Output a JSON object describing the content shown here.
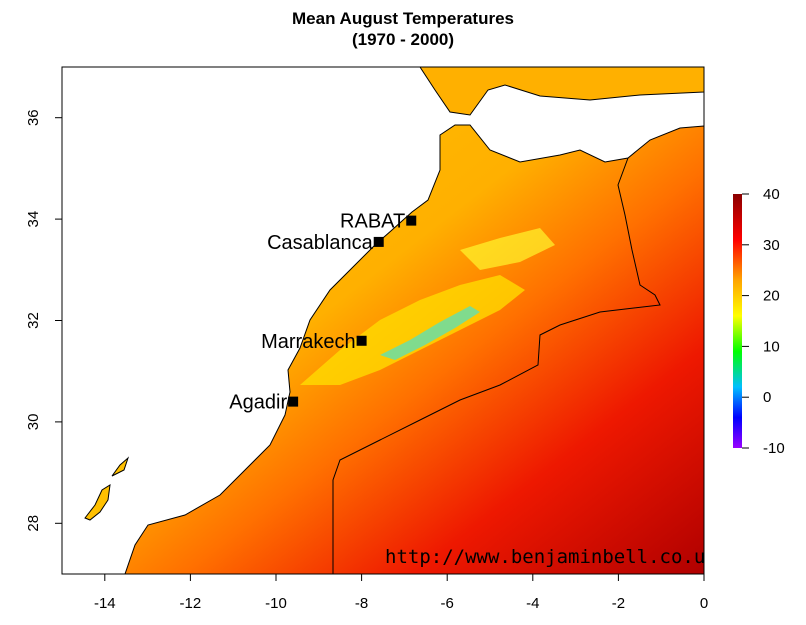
{
  "title": {
    "line1": "Mean August Temperatures",
    "line2": "(1970 - 2000)"
  },
  "map": {
    "x_range": [
      -15,
      0
    ],
    "y_range": [
      27,
      37
    ],
    "x_ticks": [
      -14,
      -12,
      -10,
      -8,
      -6,
      -4,
      -2,
      0
    ],
    "y_ticks": [
      28,
      30,
      32,
      34,
      36
    ],
    "cities": [
      {
        "name": "RABAT",
        "lon": -6.84,
        "lat": 33.97
      },
      {
        "name": "Casablanca",
        "lon": -7.6,
        "lat": 33.55
      },
      {
        "name": "Marrakech",
        "lon": -8.0,
        "lat": 31.6
      },
      {
        "name": "Agadir",
        "lon": -9.6,
        "lat": 30.4
      }
    ],
    "credit": "http://www.benjaminbell.co.uk"
  },
  "legend": {
    "min": -10,
    "max": 40,
    "ticks": [
      40,
      30,
      20,
      10,
      0,
      -10
    ],
    "colors": [
      "#ffff00",
      "#ffa500",
      "#ff0000",
      "#8b0000",
      "#00ff00",
      "#0000ff",
      "#9900ff"
    ]
  }
}
